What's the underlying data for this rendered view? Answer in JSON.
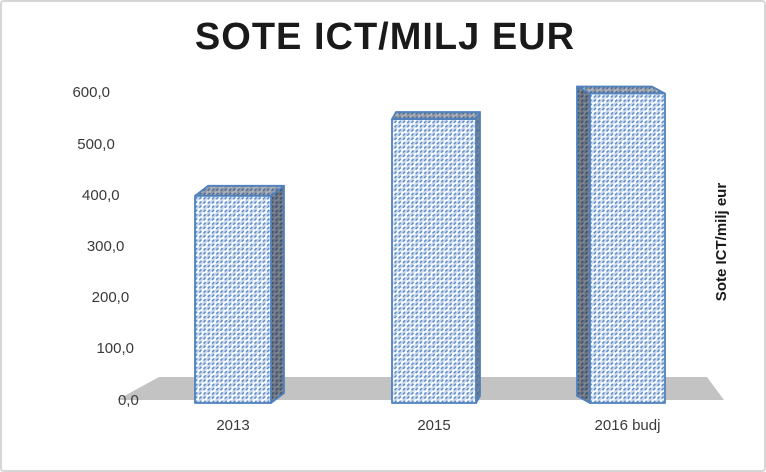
{
  "chart_data": {
    "type": "bar",
    "title": "SOTE ICT/MILJ EUR",
    "categories": [
      "2013",
      "2015",
      "2016 budj"
    ],
    "values": [
      400.0,
      550.0,
      600.0
    ],
    "yticks": [
      {
        "value": 600,
        "label": "600,0"
      },
      {
        "value": 500,
        "label": "500,0"
      },
      {
        "value": 400,
        "label": "400,0"
      },
      {
        "value": 300,
        "label": "300,0"
      },
      {
        "value": 200,
        "label": "200,0"
      },
      {
        "value": 100,
        "label": "100,0"
      },
      {
        "value": 0,
        "label": "0,0"
      }
    ],
    "ylim": [
      0,
      600
    ],
    "axis_title_right": "Sote ICT/milj eur",
    "legend": false,
    "gridlines": false,
    "style": "3d-column-pattern-fill",
    "colors": {
      "border": "#4f81bd",
      "pattern_bg": "#ffffff",
      "pattern_light": "#cfdff2",
      "pattern_dark": "#5e8ac7",
      "top_shade": "rgba(60,62,72,0.40)",
      "side_shade": "rgba(28,32,44,0.55)",
      "floor": "#c3c3c3",
      "text": "#3a3a3a",
      "title_text": "#1a1a1a"
    }
  }
}
